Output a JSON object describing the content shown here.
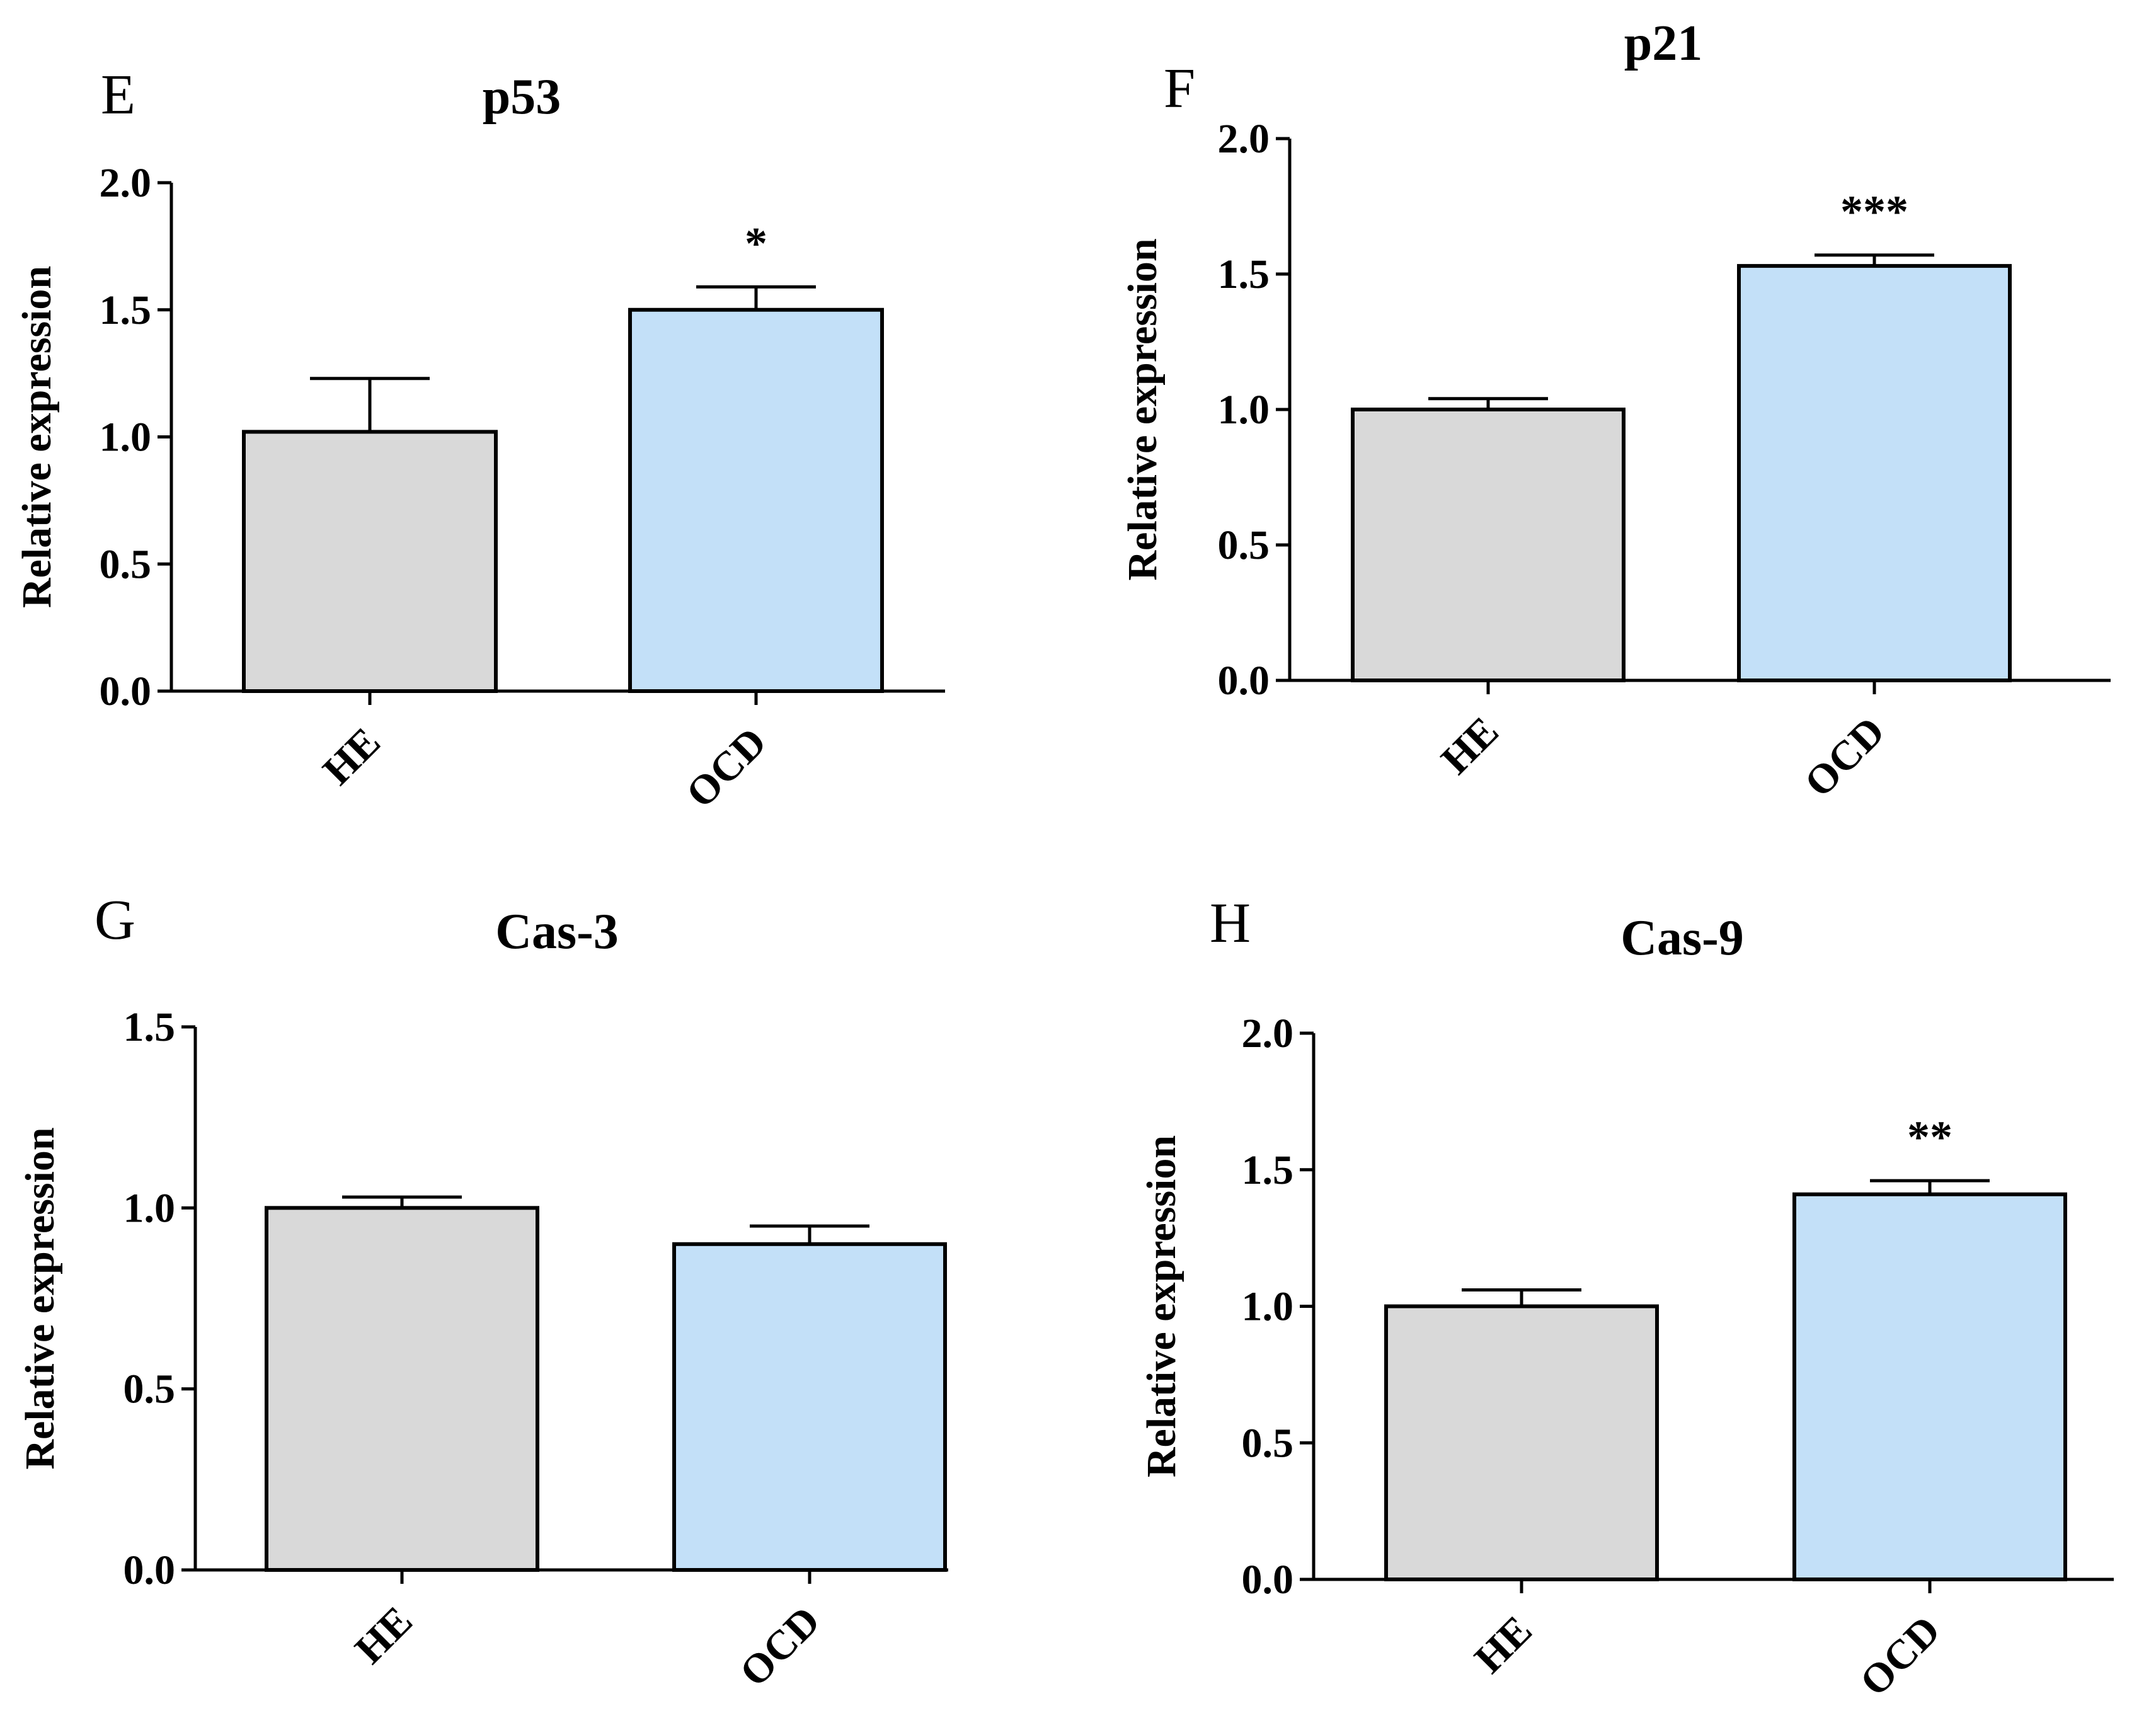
{
  "chart_data": [
    {
      "type": "bar",
      "panel": "E",
      "title": "p53",
      "ylabel": "Relative expression",
      "xlabel": "",
      "categories": [
        "HE",
        "OCD"
      ],
      "values": [
        1.02,
        1.5
      ],
      "errors": [
        0.21,
        0.09
      ],
      "significance": [
        "",
        "*"
      ],
      "ylim": [
        0,
        2.0
      ],
      "yticks": [
        "0.0",
        "0.5",
        "1.0",
        "1.5",
        "2.0"
      ],
      "bar_colors": [
        "#d9d9d9",
        "#c3e0f8"
      ]
    },
    {
      "type": "bar",
      "panel": "F",
      "title": "p21",
      "ylabel": "Relative expression",
      "xlabel": "",
      "categories": [
        "HE",
        "OCD"
      ],
      "values": [
        1.0,
        1.53
      ],
      "errors": [
        0.04,
        0.04
      ],
      "significance": [
        "",
        "***"
      ],
      "ylim": [
        0,
        2.0
      ],
      "yticks": [
        "0.0",
        "0.5",
        "1.0",
        "1.5",
        "2.0"
      ],
      "bar_colors": [
        "#d9d9d9",
        "#c3e0f8"
      ]
    },
    {
      "type": "bar",
      "panel": "G",
      "title": "Cas-3",
      "ylabel": "Relative expression",
      "xlabel": "",
      "categories": [
        "HE",
        "OCD"
      ],
      "values": [
        1.0,
        0.9
      ],
      "errors": [
        0.03,
        0.05
      ],
      "significance": [
        "",
        ""
      ],
      "ylim": [
        0,
        1.5
      ],
      "yticks": [
        "0.0",
        "0.5",
        "1.0",
        "1.5"
      ],
      "bar_colors": [
        "#d9d9d9",
        "#c3e0f8"
      ]
    },
    {
      "type": "bar",
      "panel": "H",
      "title": "Cas-9",
      "ylabel": "Relative expression",
      "xlabel": "",
      "categories": [
        "HE",
        "OCD"
      ],
      "values": [
        1.0,
        1.41
      ],
      "errors": [
        0.06,
        0.05
      ],
      "significance": [
        "",
        "**"
      ],
      "ylim": [
        0,
        2.0
      ],
      "yticks": [
        "0.0",
        "0.5",
        "1.0",
        "1.5",
        "2.0"
      ],
      "bar_colors": [
        "#d9d9d9",
        "#c3e0f8"
      ]
    }
  ]
}
